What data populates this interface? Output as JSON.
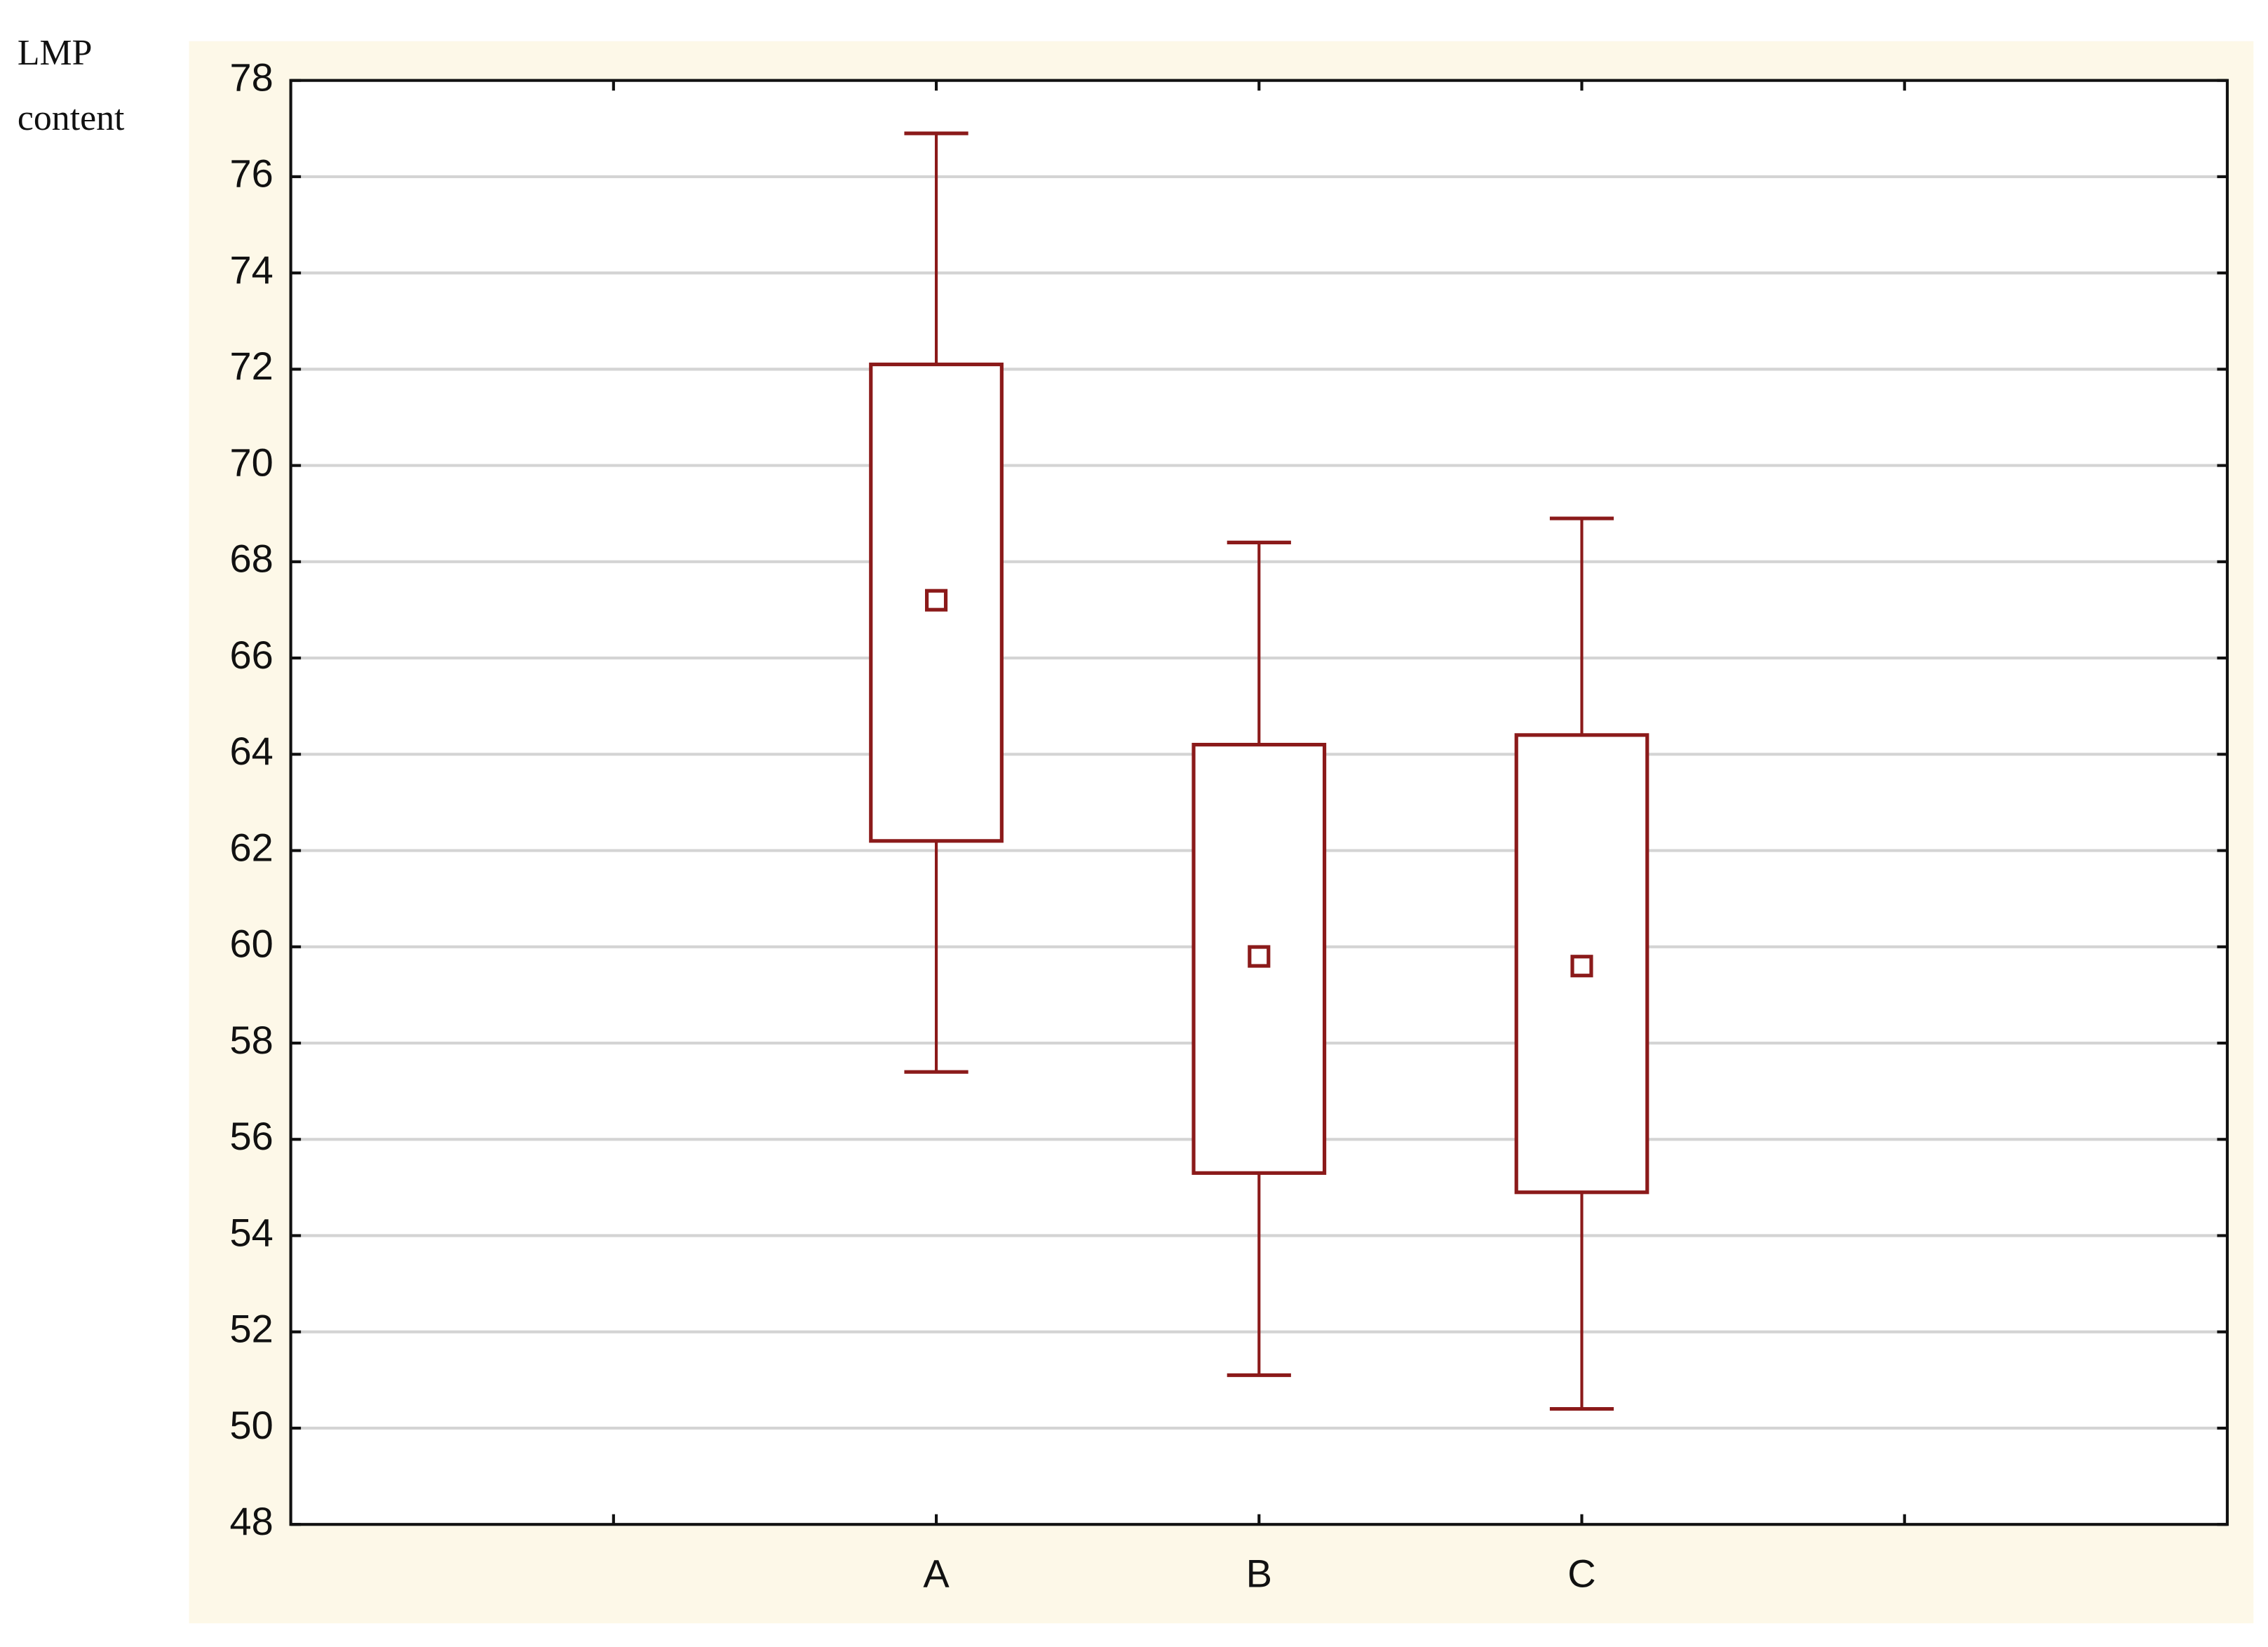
{
  "chart_data": {
    "type": "box",
    "ylabel": "LMP content",
    "categories": [
      null,
      "A",
      "B",
      "C",
      null
    ],
    "color": "#8b1a1a",
    "boxes": {
      "whisker_low": [
        null,
        57.4,
        51.1,
        50.4,
        null
      ],
      "box_low": [
        null,
        62.2,
        55.3,
        54.9,
        null
      ],
      "mean": [
        null,
        67.2,
        59.8,
        59.6,
        null
      ],
      "box_high": [
        null,
        72.1,
        64.2,
        64.4,
        null
      ],
      "whisker_high": [
        null,
        76.9,
        68.4,
        68.9,
        null
      ]
    },
    "ylim": [
      48,
      78
    ],
    "yticks": [
      48,
      50,
      52,
      54,
      56,
      58,
      60,
      62,
      64,
      66,
      68,
      70,
      72,
      74,
      76,
      78
    ],
    "grid": true
  }
}
